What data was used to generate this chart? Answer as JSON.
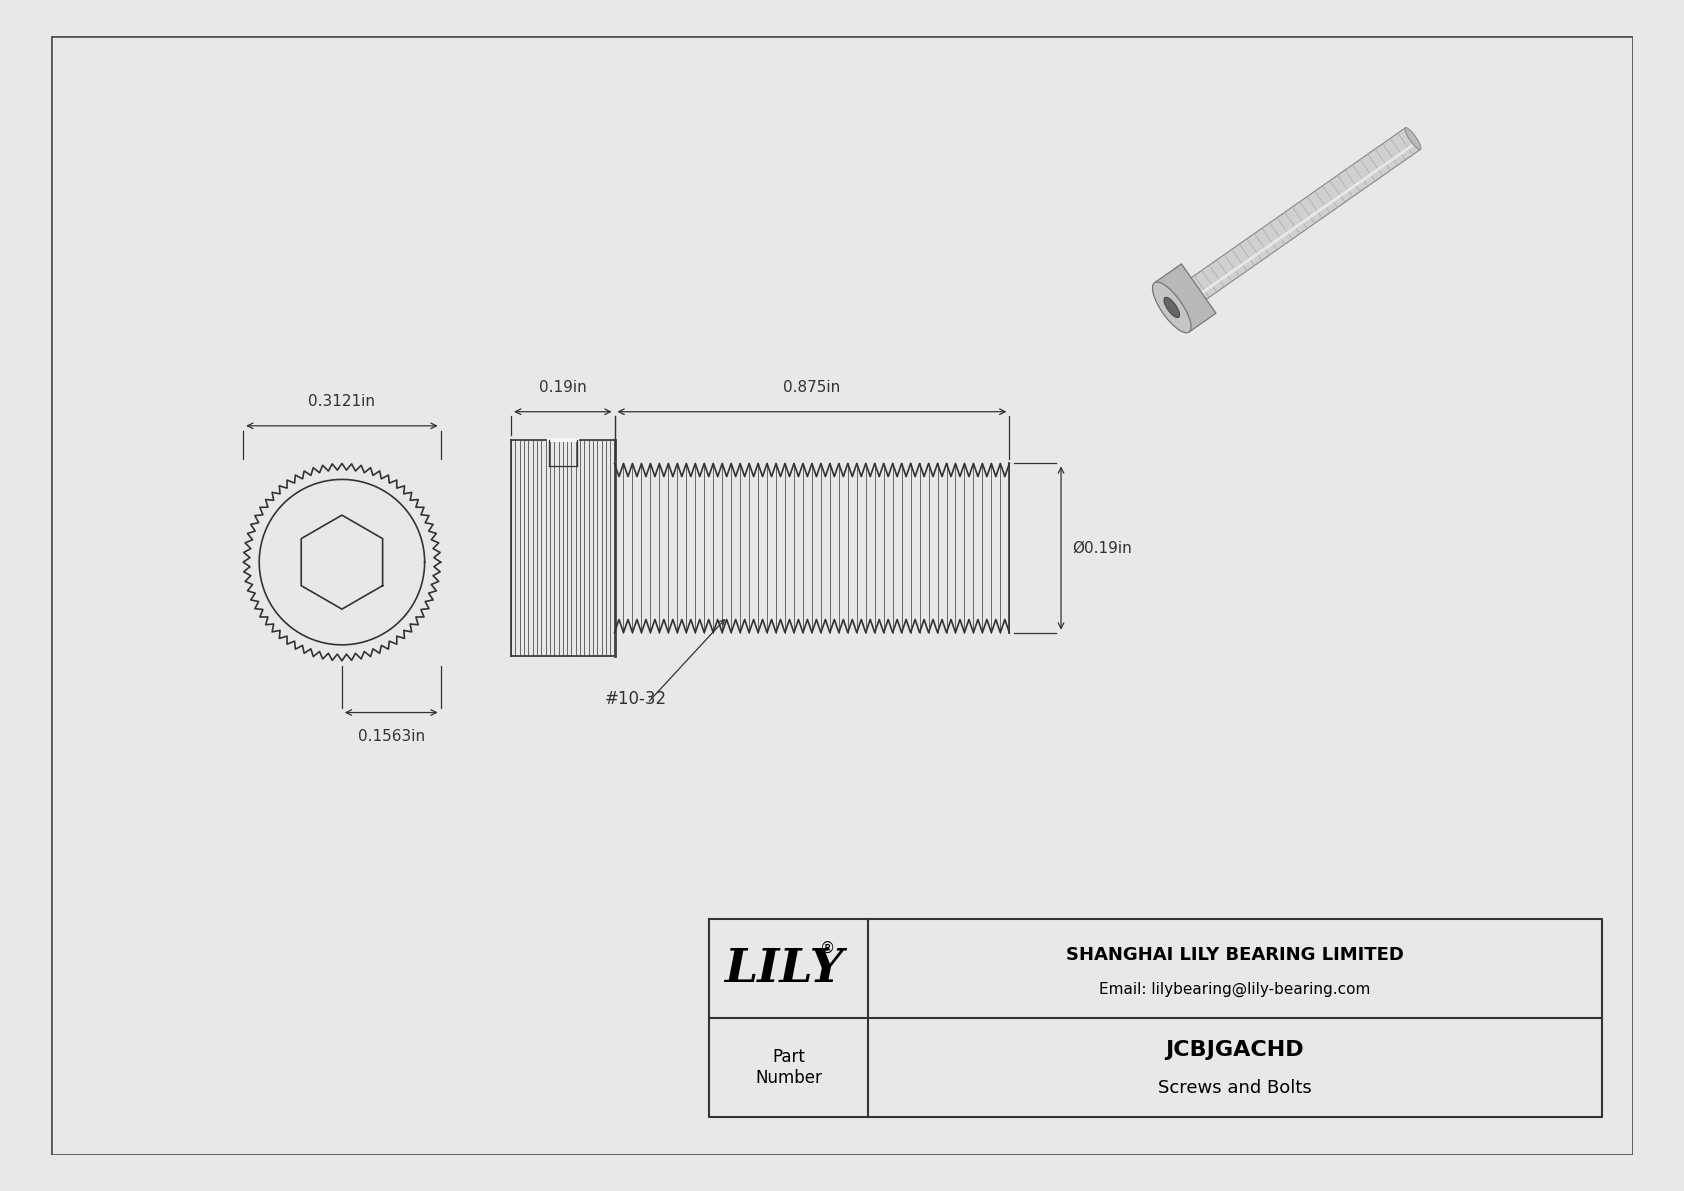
{
  "bg_color": "#e8e8e8",
  "drawing_bg": "#f5f5f5",
  "border_color": "#555555",
  "line_color": "#333333",
  "dim_color": "#333333",
  "title": "JCBJGACHD",
  "subtitle": "Screws and Bolts",
  "company": "SHANGHAI LILY BEARING LIMITED",
  "email": "Email: lilybearing@lily-bearing.com",
  "part_label": "Part\nNumber",
  "dim_head_width": "0.3121in",
  "dim_head_length": "0.19in",
  "dim_shaft_length": "0.875in",
  "dim_hex_radius": "0.1563in",
  "dim_shaft_dia": "Ø0.19in",
  "thread_label": "#10-32"
}
